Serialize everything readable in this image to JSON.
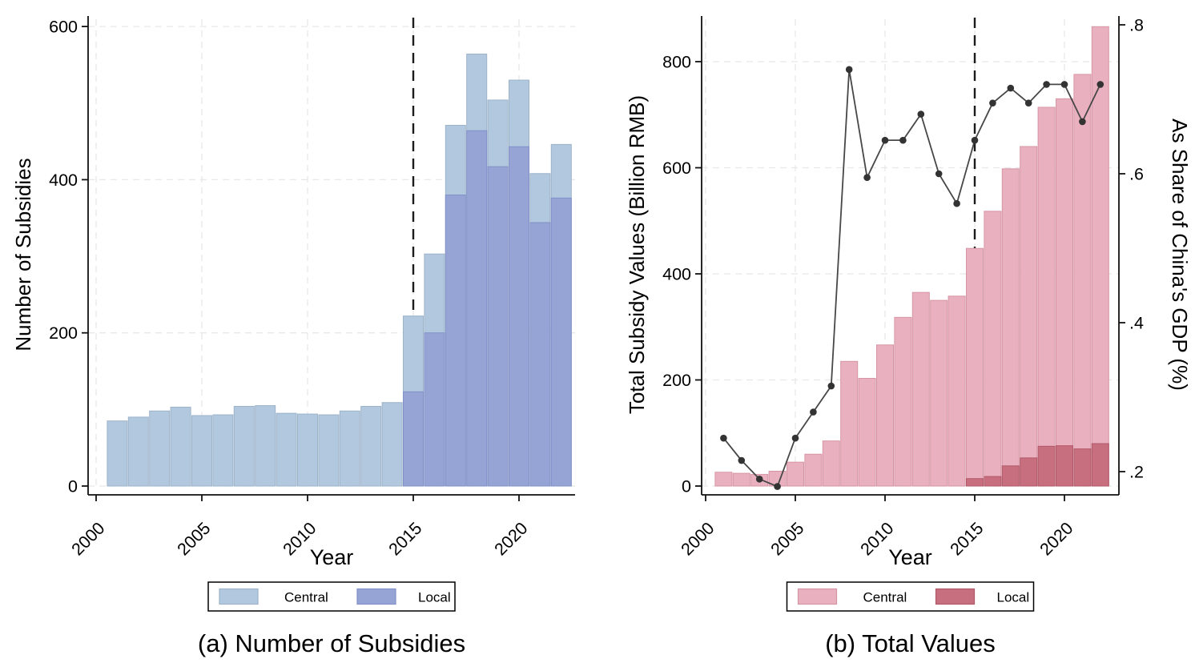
{
  "figure": {
    "background": "#ffffff",
    "panels": [
      {
        "caption": "(a) Number of Subsidies"
      },
      {
        "caption": "(b) Total Values"
      }
    ]
  },
  "colors": {
    "panel_a_central_fill": "#b2c8de",
    "panel_a_central_stroke": "#9cb3ca",
    "panel_a_local_fill": "#96a4d5",
    "panel_a_local_stroke": "#8191c8",
    "panel_b_central_fill": "#e9b1bf",
    "panel_b_central_stroke": "#d695a4",
    "panel_b_local_fill": "#c76e7f",
    "panel_b_local_stroke": "#b25969",
    "gdp_line": "#474747",
    "gdp_dot": "#333333",
    "vline": "#1b1b1b",
    "grid": "#e8e8e8",
    "axis": "#111111",
    "text": "#000000"
  },
  "chart_data": [
    {
      "type": "bar",
      "panel": "a",
      "title": "(a) Number of Subsidies",
      "xlabel": "Year",
      "ylabel": "Number of Subsidies",
      "x": [
        2001,
        2002,
        2003,
        2004,
        2005,
        2006,
        2007,
        2008,
        2009,
        2010,
        2011,
        2012,
        2013,
        2014,
        2015,
        2016,
        2017,
        2018,
        2019,
        2020,
        2021,
        2022
      ],
      "series": [
        {
          "name": "Central",
          "values": [
            85,
            90,
            98,
            103,
            92,
            93,
            104,
            105,
            95,
            94,
            93,
            98,
            104,
            109,
            222,
            303,
            471,
            564,
            504,
            530,
            408,
            446
          ]
        },
        {
          "name": "Local",
          "values": [
            0,
            0,
            0,
            0,
            0,
            0,
            0,
            0,
            0,
            0,
            0,
            0,
            0,
            0,
            123,
            200,
            380,
            464,
            417,
            443,
            344,
            376
          ]
        }
      ],
      "xticks": [
        2000,
        2005,
        2010,
        2015,
        2020
      ],
      "yticks": [
        0,
        200,
        400,
        600
      ],
      "ylim": [
        0,
        627
      ],
      "xlim": [
        1999.5,
        2022.9
      ],
      "grid": true,
      "vline": {
        "x": 2015,
        "style": "dashed"
      },
      "legend": [
        "Central",
        "Local"
      ],
      "legend_position": "bottom"
    },
    {
      "type": "bar+line",
      "panel": "b",
      "title": "(b) Total Values",
      "xlabel": "Year",
      "ylabel_left": "Total Subsidy Values (Billion RMB)",
      "ylabel_right": "As Share of China's GDP (%)",
      "x": [
        2001,
        2002,
        2003,
        2004,
        2005,
        2006,
        2007,
        2008,
        2009,
        2010,
        2011,
        2012,
        2013,
        2014,
        2015,
        2016,
        2017,
        2018,
        2019,
        2020,
        2021,
        2022
      ],
      "bar_series": [
        {
          "name": "Central",
          "axis": "left",
          "values": [
            26,
            24,
            22,
            28,
            45,
            60,
            85,
            235,
            203,
            266,
            318,
            365,
            350,
            358,
            448,
            518,
            598,
            640,
            714,
            730,
            776,
            866
          ]
        },
        {
          "name": "Local",
          "axis": "left",
          "values": [
            0,
            0,
            0,
            0,
            0,
            0,
            0,
            0,
            0,
            0,
            0,
            0,
            0,
            0,
            14,
            18,
            38,
            53,
            75,
            76,
            70,
            80
          ]
        }
      ],
      "line_series": {
        "name": "As Share of China's GDP (%)",
        "axis": "right",
        "values": [
          0.245,
          0.215,
          0.19,
          0.18,
          0.245,
          0.28,
          0.315,
          0.74,
          0.595,
          0.645,
          0.645,
          0.68,
          0.6,
          0.56,
          0.645,
          0.695,
          0.715,
          0.695,
          0.72,
          0.72,
          0.67,
          0.72
        ]
      },
      "xticks": [
        2000,
        2005,
        2010,
        2015,
        2020
      ],
      "yticks_left": [
        0,
        200,
        400,
        600,
        800
      ],
      "yticks_right": [
        0.2,
        0.4,
        0.6,
        0.8
      ],
      "yticks_right_labels": [
        ".2",
        ".4",
        ".6",
        ".8"
      ],
      "ylim_left": [
        0,
        880
      ],
      "ylim_right": [
        0.175,
        0.81
      ],
      "grid": true,
      "vline": {
        "x": 2015,
        "style": "dashed"
      },
      "legend": [
        "Central",
        "Local"
      ],
      "legend_position": "bottom"
    }
  ]
}
